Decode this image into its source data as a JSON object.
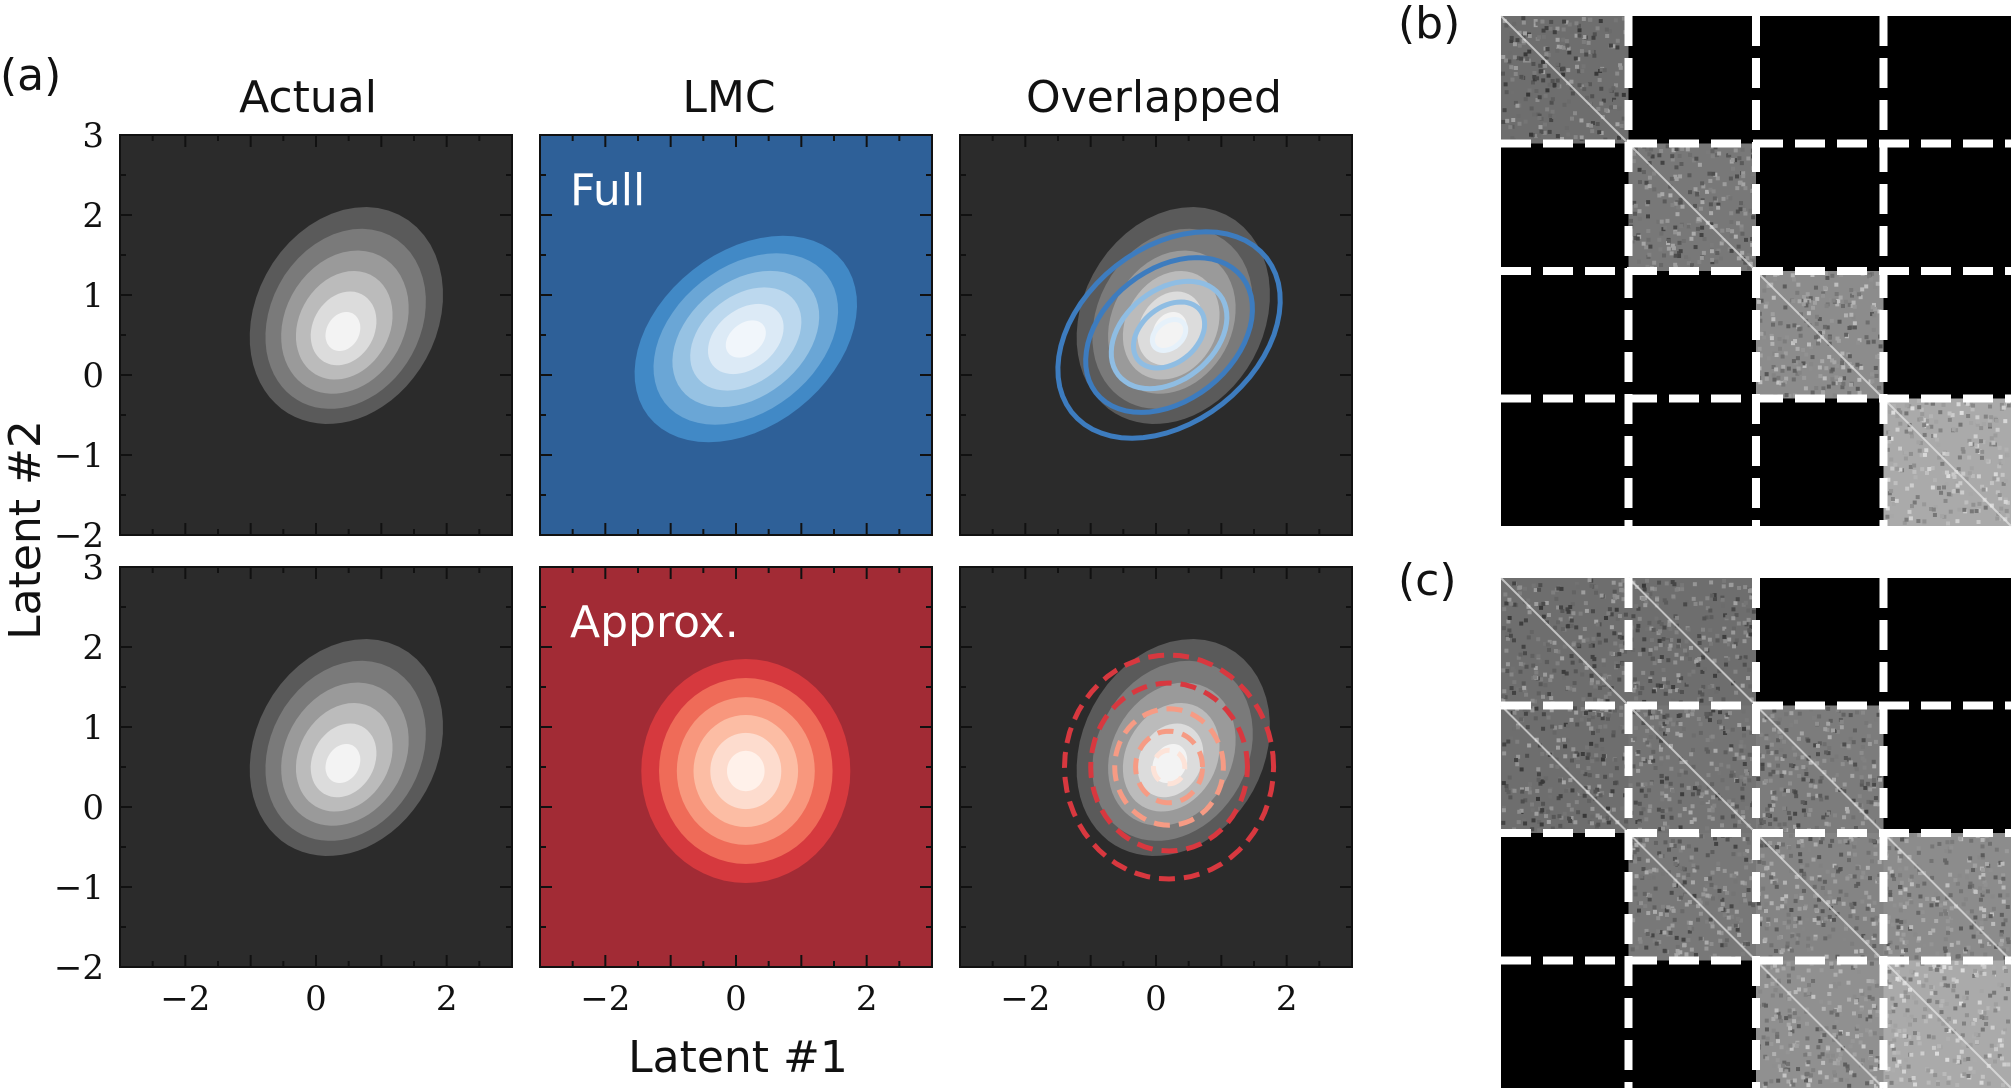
{
  "figure": {
    "panel_labels": [
      "(a)",
      "(b)",
      "(c)"
    ],
    "column_titles": [
      "Actual",
      "LMC",
      "Overlapped"
    ],
    "row_labels": [
      "Full",
      "Approx."
    ],
    "xlabel": "Latent #1",
    "ylabel": "Latent #2"
  },
  "colors": {
    "dark_bg": "#2b2b2b",
    "full_bg": "#2e6098",
    "approx_bg": "#a22b35",
    "full_line": "#3d7cbf",
    "approx_line": "#d8383f",
    "matrix_black": "#000000",
    "separator": "#ffffff"
  },
  "chart_data": [
    {
      "type": "heatmap",
      "panel": "(a)",
      "description_kind": "contour",
      "x_ticks": [
        -2,
        0,
        2
      ],
      "y_ticks": [
        3,
        2,
        1,
        0,
        -1,
        -2
      ],
      "xlim": [
        -3,
        3
      ],
      "ylim": [
        -2,
        3
      ],
      "tick_label_text": {
        "x": [
          "−2",
          "0",
          "2"
        ],
        "y": [
          "3",
          "2",
          "1",
          "0",
          "−1",
          "−2"
        ]
      },
      "subplots": [
        {
          "row": 1,
          "col": 1,
          "kind": "actual",
          "center": [
            0.4,
            0.5
          ],
          "levels": 6
        },
        {
          "row": 1,
          "col": 2,
          "kind": "lmc-full",
          "center": [
            0.15,
            0.45
          ],
          "sigma": [
            1.8,
            1.15
          ],
          "rotation_deg": 25,
          "levels": 6
        },
        {
          "row": 1,
          "col": 3,
          "kind": "overlapped-full",
          "center": [
            0.2,
            0.5
          ]
        },
        {
          "row": 2,
          "col": 1,
          "kind": "actual",
          "center": [
            0.4,
            0.5
          ],
          "levels": 6
        },
        {
          "row": 2,
          "col": 2,
          "kind": "lmc-approx",
          "center": [
            0.15,
            0.45
          ],
          "sigma": [
            1.6,
            1.4
          ],
          "rotation_deg": 0,
          "levels": 6
        },
        {
          "row": 2,
          "col": 3,
          "kind": "overlapped-approx",
          "center": [
            0.2,
            0.5
          ]
        }
      ]
    },
    {
      "type": "heatmap",
      "panel": "(b)",
      "blocks": 4,
      "nonzero_blocks": [
        [
          0,
          0
        ],
        [
          1,
          1
        ],
        [
          2,
          2
        ],
        [
          3,
          3
        ]
      ],
      "block_gray": [
        [
          0.55,
          0,
          0,
          0
        ],
        [
          0,
          0.6,
          0,
          0
        ],
        [
          0,
          0,
          0.7,
          0
        ],
        [
          0,
          0,
          0,
          0.85
        ]
      ]
    },
    {
      "type": "heatmap",
      "panel": "(c)",
      "blocks": 4,
      "nonzero_blocks": [
        [
          0,
          0
        ],
        [
          0,
          1
        ],
        [
          1,
          0
        ],
        [
          1,
          1
        ],
        [
          1,
          2
        ],
        [
          2,
          1
        ],
        [
          2,
          2
        ],
        [
          2,
          3
        ],
        [
          3,
          2
        ],
        [
          3,
          3
        ]
      ],
      "block_gray": [
        [
          0.55,
          0.55,
          0,
          0
        ],
        [
          0.55,
          0.58,
          0.62,
          0
        ],
        [
          0,
          0.6,
          0.66,
          0.7
        ],
        [
          0,
          0,
          0.72,
          0.85
        ]
      ]
    }
  ]
}
